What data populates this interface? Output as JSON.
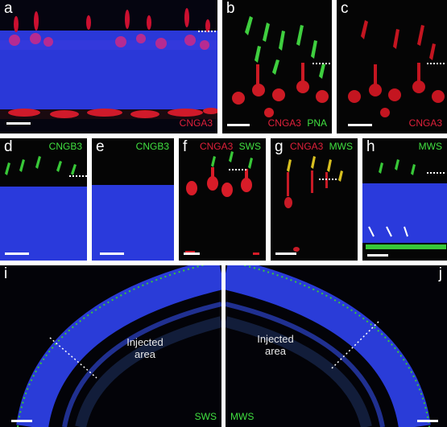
{
  "panels": {
    "a": {
      "label": "a",
      "stains": [
        {
          "text": "CNGA3",
          "color": "#e0203a"
        }
      ]
    },
    "b": {
      "label": "b",
      "stains": [
        {
          "text": "CNGA3",
          "color": "#e0203a"
        },
        {
          "text": "PNA",
          "color": "#40e040"
        }
      ]
    },
    "c": {
      "label": "c",
      "stains": [
        {
          "text": "CNGA3",
          "color": "#e0203a"
        }
      ]
    },
    "d": {
      "label": "d",
      "stains": [
        {
          "text": "CNGB3",
          "color": "#40e040"
        }
      ]
    },
    "e": {
      "label": "e",
      "stains": [
        {
          "text": "CNGB3",
          "color": "#40e040"
        }
      ]
    },
    "f": {
      "label": "f",
      "stains": [
        {
          "text": "CNGA3",
          "color": "#e0203a"
        },
        {
          "text": "SWS",
          "color": "#40e040"
        }
      ]
    },
    "g": {
      "label": "g",
      "stains": [
        {
          "text": "CNGA3",
          "color": "#e0203a"
        },
        {
          "text": "MWS",
          "color": "#40e040"
        }
      ]
    },
    "h": {
      "label": "h",
      "stains": [
        {
          "text": "MWS",
          "color": "#40e040"
        }
      ]
    },
    "i": {
      "label": "i",
      "stains": [
        {
          "text": "SWS",
          "color": "#40e040"
        }
      ],
      "annotation": "Injected\narea"
    },
    "j": {
      "label": "j",
      "stains": [
        {
          "text": "MWS",
          "color": "#40e040"
        }
      ],
      "annotation": "Injected\narea"
    }
  },
  "colors": {
    "nuclei": "#2233dd",
    "red_stain": "#e0203a",
    "green_stain": "#40e040",
    "background": "#000000"
  }
}
